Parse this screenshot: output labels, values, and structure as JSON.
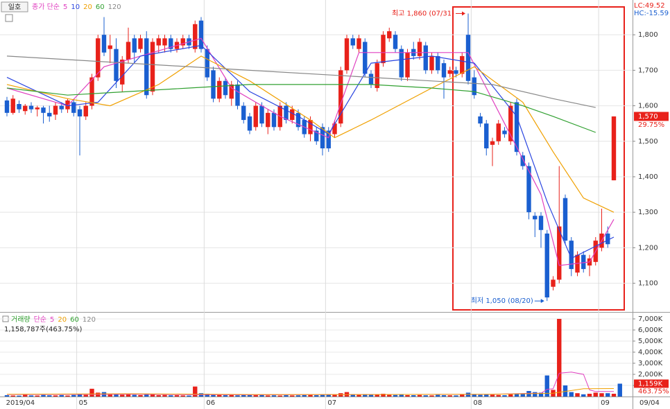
{
  "chart_data": [
    {
      "type": "candlestick",
      "button": "일호",
      "ma_label": "종가 단순",
      "up_color": "#e8211a",
      "down_color": "#1a5fd0",
      "open": [
        1615,
        1580,
        1605,
        1585,
        1600,
        1590,
        1595,
        1580,
        1575,
        1600,
        1590,
        1610,
        1590,
        1570,
        1600,
        1680,
        1800,
        1760,
        1760,
        1660,
        1730,
        1790,
        1760,
        1790,
        1640,
        1770,
        1770,
        1790,
        1760,
        1770,
        1790,
        1760,
        1840,
        1760,
        1700,
        1620,
        1670,
        1620,
        1660,
        1600,
        1570,
        1540,
        1600,
        1540,
        1580,
        1540,
        1600,
        1560,
        1580,
        1560,
        1520,
        1530,
        1540,
        1530,
        1520,
        1550,
        1700,
        1790,
        1760,
        1780,
        1690,
        1650,
        1720,
        1790,
        1800,
        1760,
        1680,
        1760,
        1740,
        1770,
        1700,
        1740,
        1720,
        1690,
        1700,
        1690,
        1800,
        1680,
        1570,
        1550,
        1490,
        1500,
        1530,
        1500,
        1610,
        1460,
        1430,
        1290,
        1290,
        1240,
        1090,
        1110,
        1340,
        1220,
        1130,
        1180,
        1150,
        1160,
        1200,
        1240,
        1390
      ],
      "high": [
        1625,
        1630,
        1615,
        1605,
        1610,
        1600,
        1600,
        1600,
        1610,
        1610,
        1620,
        1620,
        1600,
        1610,
        1690,
        1800,
        1850,
        1800,
        1790,
        1740,
        1820,
        1800,
        1800,
        1810,
        1790,
        1800,
        1800,
        1800,
        1790,
        1800,
        1800,
        1840,
        1850,
        1770,
        1710,
        1680,
        1680,
        1670,
        1670,
        1610,
        1580,
        1610,
        1610,
        1590,
        1590,
        1610,
        1610,
        1600,
        1590,
        1570,
        1570,
        1540,
        1550,
        1540,
        1560,
        1710,
        1800,
        1800,
        1800,
        1790,
        1700,
        1730,
        1810,
        1820,
        1810,
        1770,
        1760,
        1780,
        1790,
        1780,
        1750,
        1750,
        1730,
        1710,
        1710,
        1750,
        1860,
        1700,
        1580,
        1560,
        1510,
        1560,
        1540,
        1610,
        1620,
        1470,
        1440,
        1300,
        1300,
        1250,
        1120,
        1430,
        1350,
        1230,
        1190,
        1190,
        1180,
        1230,
        1310,
        1260,
        1570
      ],
      "low": [
        1570,
        1575,
        1580,
        1575,
        1580,
        1570,
        1550,
        1555,
        1560,
        1580,
        1580,
        1570,
        1460,
        1560,
        1590,
        1670,
        1740,
        1720,
        1650,
        1640,
        1720,
        1720,
        1750,
        1620,
        1630,
        1750,
        1750,
        1750,
        1750,
        1760,
        1760,
        1750,
        1750,
        1670,
        1610,
        1610,
        1620,
        1600,
        1590,
        1550,
        1520,
        1530,
        1540,
        1520,
        1530,
        1530,
        1550,
        1550,
        1530,
        1510,
        1500,
        1490,
        1460,
        1470,
        1510,
        1540,
        1690,
        1760,
        1750,
        1680,
        1650,
        1640,
        1710,
        1780,
        1750,
        1670,
        1670,
        1730,
        1730,
        1690,
        1690,
        1690,
        1620,
        1680,
        1680,
        1680,
        1660,
        1620,
        1540,
        1460,
        1430,
        1490,
        1510,
        1490,
        1460,
        1420,
        1280,
        1230,
        1200,
        1050,
        1080,
        1100,
        1210,
        1120,
        1120,
        1130,
        1120,
        1150,
        1190,
        1200,
        1390
      ],
      "close": [
        1580,
        1620,
        1590,
        1600,
        1590,
        1595,
        1580,
        1570,
        1600,
        1590,
        1615,
        1580,
        1570,
        1600,
        1680,
        1790,
        1750,
        1770,
        1670,
        1730,
        1780,
        1750,
        1790,
        1630,
        1780,
        1790,
        1790,
        1760,
        1780,
        1790,
        1770,
        1830,
        1760,
        1680,
        1620,
        1670,
        1630,
        1660,
        1600,
        1560,
        1530,
        1600,
        1550,
        1580,
        1540,
        1600,
        1560,
        1590,
        1540,
        1520,
        1560,
        1500,
        1480,
        1480,
        1550,
        1700,
        1790,
        1770,
        1790,
        1690,
        1660,
        1720,
        1800,
        1810,
        1760,
        1680,
        1750,
        1740,
        1780,
        1700,
        1740,
        1700,
        1680,
        1700,
        1690,
        1740,
        1670,
        1630,
        1550,
        1480,
        1500,
        1550,
        1520,
        1600,
        1470,
        1430,
        1300,
        1280,
        1250,
        1060,
        1110,
        1260,
        1220,
        1140,
        1180,
        1140,
        1170,
        1220,
        1240,
        1210,
        1570
      ],
      "ylim": [
        1023,
        1898
      ],
      "yticks": [
        {
          "value": 1100,
          "label": "1,100"
        },
        {
          "value": 1200,
          "label": "1,200"
        },
        {
          "value": 1300,
          "label": "1,300"
        },
        {
          "value": 1400,
          "label": "1,400"
        },
        {
          "value": 1500,
          "label": "1,500"
        },
        {
          "value": 1600,
          "label": "1,600"
        },
        {
          "value": 1700,
          "label": "1,700"
        },
        {
          "value": 1800,
          "label": "1,800"
        }
      ],
      "ma_series": [
        {
          "name": "5",
          "color": "#e040c0",
          "x": [
            0,
            10,
            16,
            24,
            32,
            37,
            45,
            53,
            58,
            66,
            76,
            82,
            88,
            91,
            96,
            100
          ],
          "values": [
            1650,
            1600,
            1710,
            1750,
            1790,
            1650,
            1570,
            1510,
            1750,
            1750,
            1750,
            1550,
            1350,
            1150,
            1160,
            1280
          ]
        },
        {
          "name": "10",
          "color": "#2a45e0",
          "x": [
            0,
            10,
            15,
            22,
            32,
            40,
            48,
            53,
            60,
            70,
            77,
            84,
            89,
            93,
            100
          ],
          "values": [
            1680,
            1600,
            1610,
            1740,
            1770,
            1640,
            1570,
            1520,
            1720,
            1740,
            1720,
            1570,
            1330,
            1170,
            1230
          ]
        },
        {
          "name": "20",
          "color": "#f0a000",
          "x": [
            0,
            10,
            17,
            25,
            32,
            40,
            50,
            54,
            60,
            70,
            77,
            85,
            90,
            95,
            100
          ],
          "values": [
            1660,
            1620,
            1600,
            1660,
            1740,
            1670,
            1560,
            1510,
            1560,
            1650,
            1710,
            1610,
            1470,
            1340,
            1300
          ]
        },
        {
          "name": "60",
          "color": "#30a030",
          "x": [
            0,
            10,
            30,
            40,
            60,
            70,
            77,
            85,
            90,
            97
          ],
          "values": [
            1650,
            1630,
            1650,
            1660,
            1660,
            1650,
            1640,
            1600,
            1570,
            1525
          ]
        },
        {
          "name": "120",
          "color": "#888888",
          "x": [
            0,
            20,
            40,
            60,
            80,
            90,
            97
          ],
          "values": [
            1740,
            1720,
            1700,
            1680,
            1660,
            1620,
            1595
          ]
        }
      ],
      "annotations": [
        {
          "text": "최고 1,860 (07/31)",
          "index": 76,
          "value": 1860
        },
        {
          "text": "최저 1,050 (08/20)",
          "index": 89,
          "value": 1050
        }
      ],
      "last_price": {
        "value": 1570,
        "label": "1,570"
      },
      "change_label": "29.75%",
      "lc_label": "LC:49.52",
      "hc_label": "HC:-15.59"
    },
    {
      "type": "volume",
      "title": "거래량",
      "ma_label": "단순",
      "values": [
        120,
        90,
        80,
        150,
        100,
        90,
        140,
        110,
        100,
        130,
        90,
        140,
        200,
        150,
        700,
        350,
        400,
        180,
        220,
        160,
        200,
        150,
        130,
        260,
        220,
        120,
        140,
        110,
        120,
        100,
        90,
        900,
        300,
        250,
        200,
        150,
        120,
        130,
        110,
        160,
        150,
        120,
        140,
        100,
        110,
        90,
        120,
        100,
        110,
        130,
        150,
        120,
        180,
        200,
        180,
        300,
        400,
        200,
        150,
        220,
        160,
        180,
        250,
        150,
        140,
        200,
        130,
        120,
        140,
        110,
        100,
        150,
        120,
        110,
        100,
        180,
        350,
        200,
        150,
        180,
        160,
        140,
        120,
        200,
        250,
        220,
        500,
        400,
        350,
        1900,
        600,
        7000,
        1000,
        400,
        300,
        200,
        250,
        350,
        300,
        300,
        250,
        1159
      ],
      "ylim": [
        0,
        7500
      ],
      "yticks": [
        {
          "value": 1000,
          "label": "1,000K"
        },
        {
          "value": 2000,
          "label": "2,000K"
        },
        {
          "value": 3000,
          "label": "3,000K"
        },
        {
          "value": 4000,
          "label": "4,000K"
        },
        {
          "value": 5000,
          "label": "5,000K"
        },
        {
          "value": 6000,
          "label": "6,000K"
        },
        {
          "value": 7000,
          "label": "7,000K"
        }
      ],
      "ma_series": [
        {
          "name": "5",
          "color": "#e040c0",
          "x": [
            0,
            20,
            40,
            60,
            80,
            86,
            88,
            89,
            90,
            91,
            93,
            95,
            96,
            97,
            100
          ],
          "values": [
            180,
            200,
            150,
            180,
            200,
            290,
            300,
            650,
            700,
            2100,
            2200,
            2000,
            600,
            450,
            450
          ]
        },
        {
          "name": "20",
          "color": "#f0a000",
          "x": [
            0,
            20,
            40,
            60,
            80,
            90,
            95,
            100
          ],
          "values": [
            200,
            250,
            180,
            180,
            200,
            300,
            700,
            720
          ]
        }
      ],
      "legend_more": [
        {
          "name": "60",
          "color": "#30a030"
        },
        {
          "name": "120",
          "color": "#888888"
        }
      ],
      "volume_label": "1,158,787주(463.75%)",
      "last_volume": {
        "value": 1159,
        "label": "1,159K"
      },
      "change_label": "463.75%",
      "xticks": [
        {
          "value": 0,
          "label": "2019/04"
        },
        {
          "value": 12,
          "label": "05"
        },
        {
          "value": 33,
          "label": "06"
        },
        {
          "value": 53,
          "label": "07"
        },
        {
          "value": 77,
          "label": "08"
        },
        {
          "value": 98,
          "label": "09"
        }
      ],
      "end_label": "09/04"
    }
  ]
}
